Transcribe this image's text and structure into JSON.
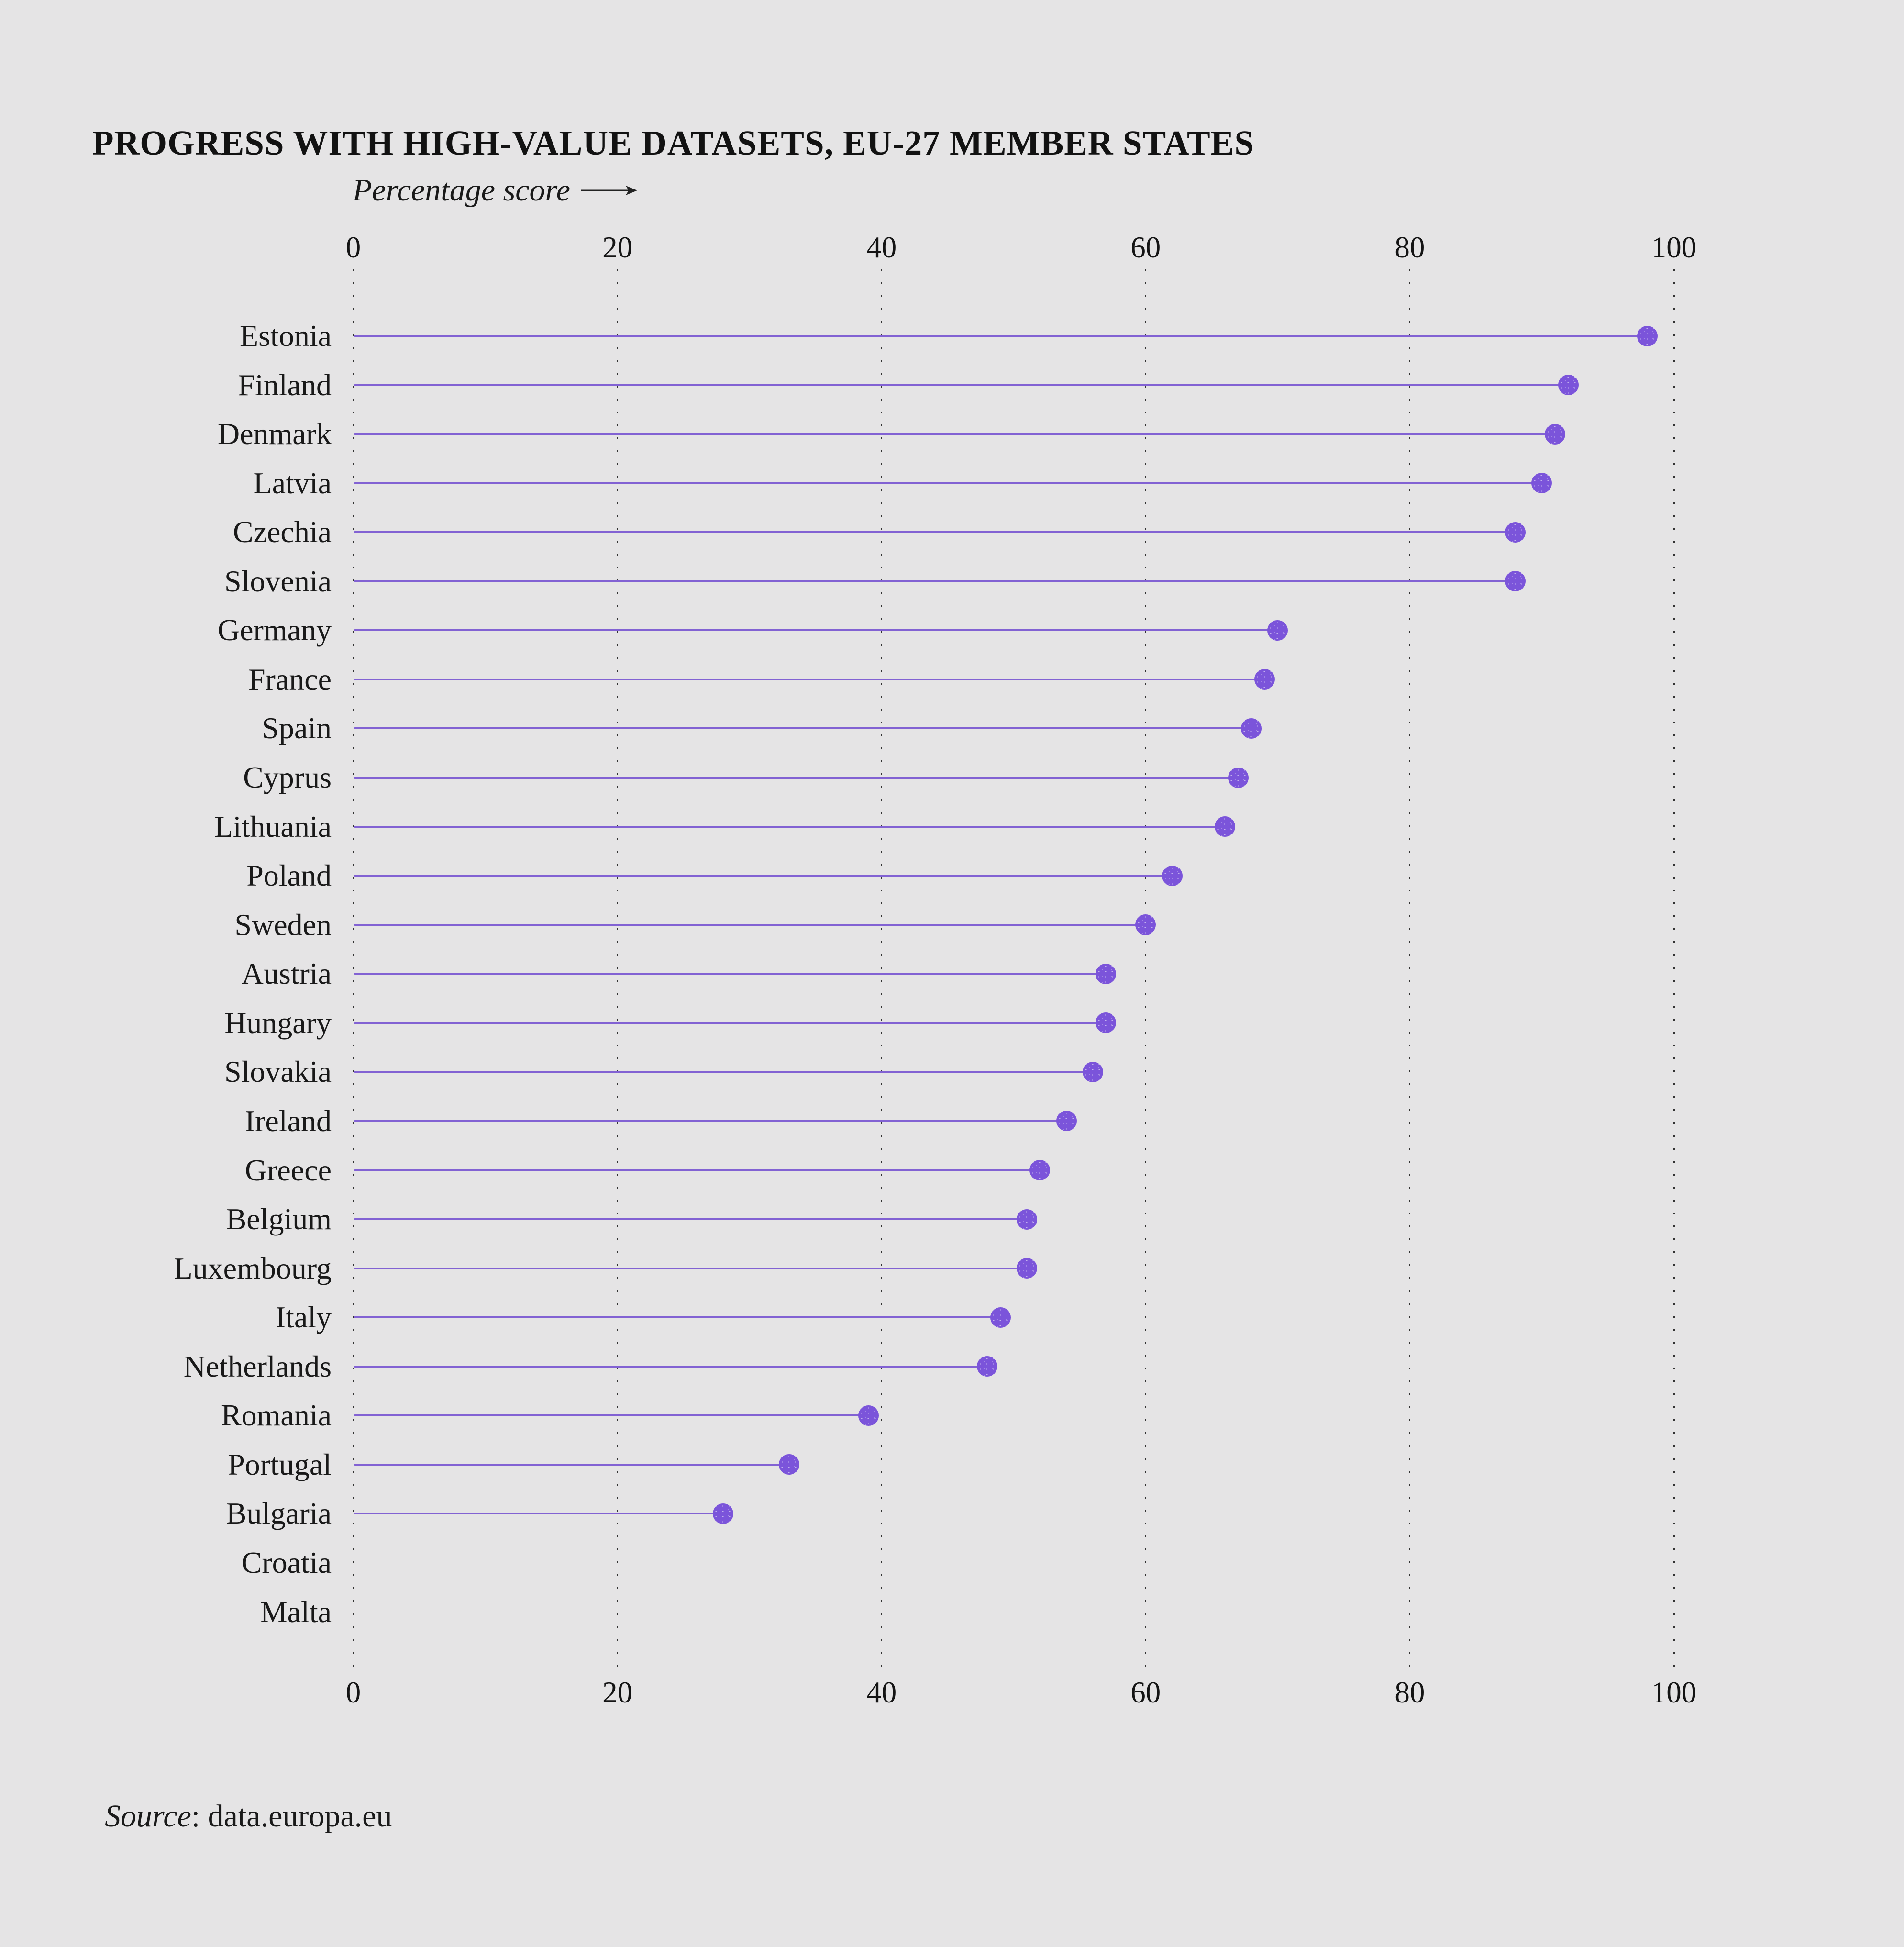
{
  "title": "PROGRESS WITH HIGH-VALUE DATASETS, EU-27 MEMBER STATES",
  "axis": {
    "label": "Percentage score",
    "ticks": [
      0,
      20,
      40,
      60,
      80,
      100
    ]
  },
  "source": {
    "italic": "Source",
    "rest": ": data.europa.eu"
  },
  "colors": {
    "background": "#e5e4e5",
    "lollipop_line": "#8262d3",
    "lollipop_dot": "#7b54da",
    "gridline": "#323232",
    "text": "#141414"
  },
  "chart_data": {
    "type": "bar",
    "variant": "lollipop",
    "orientation": "horizontal",
    "title": "PROGRESS WITH HIGH-VALUE DATASETS, EU-27 MEMBER STATES",
    "xlabel": "Percentage score",
    "ylabel": "",
    "xlim": [
      0,
      100
    ],
    "xticks": [
      0,
      20,
      40,
      60,
      80,
      100
    ],
    "grid": "dotted vertical gridlines, axis labels repeated top and bottom",
    "legend": false,
    "categories": [
      "Estonia",
      "Finland",
      "Denmark",
      "Latvia",
      "Czechia",
      "Slovenia",
      "Germany",
      "France",
      "Spain",
      "Cyprus",
      "Lithuania",
      "Poland",
      "Sweden",
      "Austria",
      "Hungary",
      "Slovakia",
      "Ireland",
      "Greece",
      "Belgium",
      "Luxembourg",
      "Italy",
      "Netherlands",
      "Romania",
      "Portugal",
      "Bulgaria",
      "Croatia",
      "Malta"
    ],
    "values": [
      98,
      92,
      91,
      90,
      88,
      88,
      70,
      69,
      68,
      67,
      66,
      62,
      60,
      57,
      57,
      56,
      54,
      52,
      51,
      51,
      49,
      48,
      39,
      33,
      28,
      null,
      null
    ]
  }
}
